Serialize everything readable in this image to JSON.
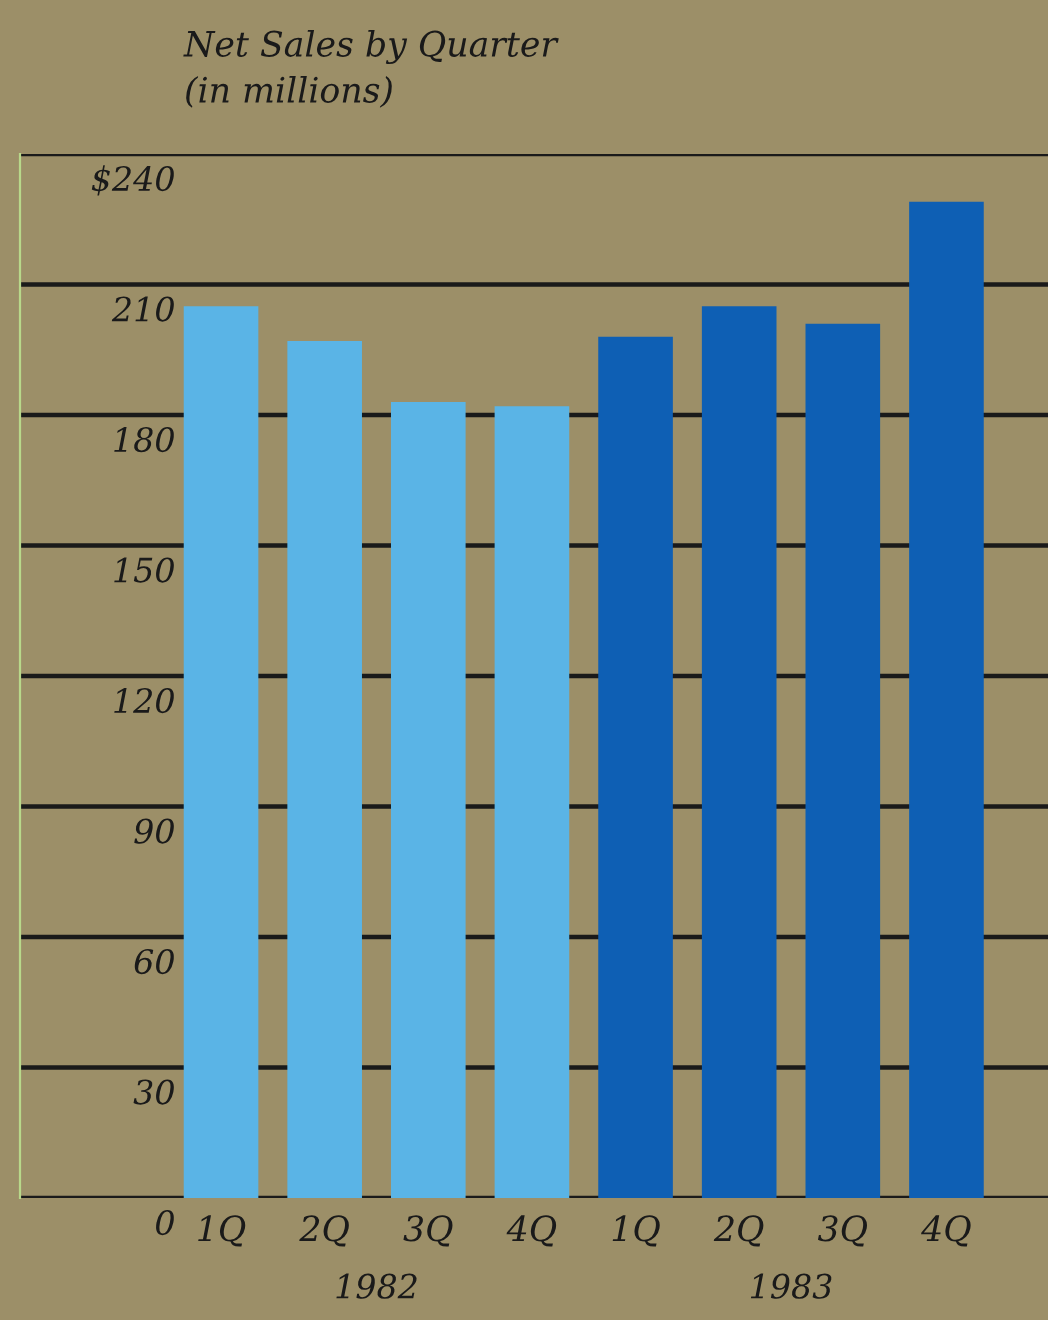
{
  "chart_data": {
    "type": "bar",
    "title": "Net Sales by Quarter",
    "subtitle": "(in millions)",
    "categories": [
      "1Q",
      "2Q",
      "3Q",
      "4Q",
      "1Q",
      "2Q",
      "3Q",
      "4Q"
    ],
    "values": [
      205,
      197,
      183,
      182,
      198,
      205,
      201,
      229
    ],
    "colors": [
      "#5ab4e6",
      "#5ab4e6",
      "#5ab4e6",
      "#5ab4e6",
      "#0e5fb4",
      "#0e5fb4",
      "#0e5fb4",
      "#0e5fb4"
    ],
    "annotations": [
      "1982",
      "1983"
    ],
    "ylim": [
      0,
      240
    ],
    "yticks": [
      0,
      30,
      60,
      90,
      120,
      150,
      180,
      210,
      {
        "value": 240,
        "label": "$240"
      }
    ],
    "grid": "y"
  }
}
